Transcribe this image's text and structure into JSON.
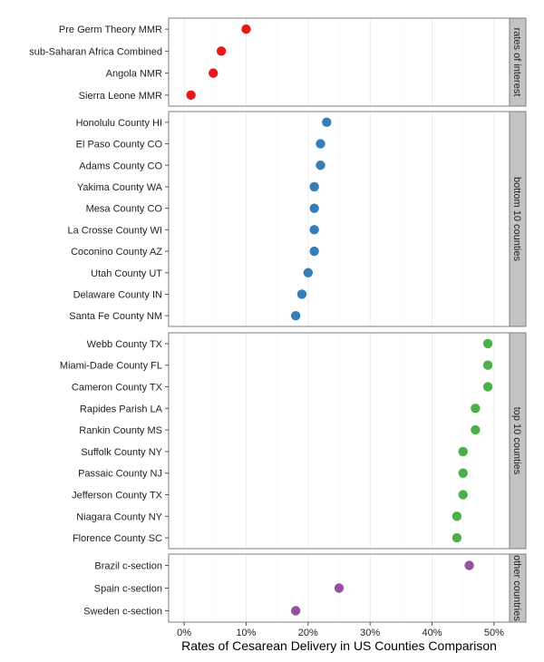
{
  "chart_data": {
    "type": "scatter",
    "title": "",
    "xlabel": "Rates of Cesarean Delivery in US Counties Comparison",
    "ylabel": "",
    "xlim": [
      -0.025,
      0.525
    ],
    "x_ticks": [
      {
        "value": 0.0,
        "label": "0%"
      },
      {
        "value": 0.1,
        "label": "10%"
      },
      {
        "value": 0.2,
        "label": "20%"
      },
      {
        "value": 0.3,
        "label": "30%"
      },
      {
        "value": 0.4,
        "label": "40%"
      },
      {
        "value": 0.5,
        "label": "50%"
      }
    ],
    "grid": true,
    "legend": "none",
    "panels": [
      {
        "name": "rates of interest",
        "color": "#e41a1c",
        "points": [
          {
            "label": "Pre Germ Theory MMR",
            "x": 0.1
          },
          {
            "label": "sub-Saharan Africa Combined",
            "x": 0.06
          },
          {
            "label": "Angola NMR",
            "x": 0.047
          },
          {
            "label": "Sierra Leone MMR",
            "x": 0.011
          }
        ]
      },
      {
        "name": "bottom 10 counties",
        "color": "#377eb8",
        "points": [
          {
            "label": "Honolulu County HI",
            "x": 0.23
          },
          {
            "label": "El Paso County CO",
            "x": 0.22
          },
          {
            "label": "Adams County CO",
            "x": 0.22
          },
          {
            "label": "Yakima County WA",
            "x": 0.21
          },
          {
            "label": "Mesa County CO",
            "x": 0.21
          },
          {
            "label": "La Crosse County WI",
            "x": 0.21
          },
          {
            "label": "Coconino County AZ",
            "x": 0.21
          },
          {
            "label": "Utah County UT",
            "x": 0.2
          },
          {
            "label": "Delaware County IN",
            "x": 0.19
          },
          {
            "label": "Santa Fe County NM",
            "x": 0.18
          }
        ]
      },
      {
        "name": "top 10 counties",
        "color": "#4daf4a",
        "points": [
          {
            "label": "Webb County TX",
            "x": 0.49
          },
          {
            "label": "Miami-Dade County FL",
            "x": 0.49
          },
          {
            "label": "Cameron County TX",
            "x": 0.49
          },
          {
            "label": "Rapides Parish LA",
            "x": 0.47
          },
          {
            "label": "Rankin County MS",
            "x": 0.47
          },
          {
            "label": "Suffolk County NY",
            "x": 0.45
          },
          {
            "label": "Passaic County NJ",
            "x": 0.45
          },
          {
            "label": "Jefferson County TX",
            "x": 0.45
          },
          {
            "label": "Niagara County NY",
            "x": 0.44
          },
          {
            "label": "Florence County SC",
            "x": 0.44
          }
        ]
      },
      {
        "name": "other countries",
        "color": "#984ea3",
        "points": [
          {
            "label": "Brazil c-section",
            "x": 0.46
          },
          {
            "label": "Spain c-section",
            "x": 0.25
          },
          {
            "label": "Sweden c-section",
            "x": 0.18
          }
        ]
      }
    ]
  }
}
